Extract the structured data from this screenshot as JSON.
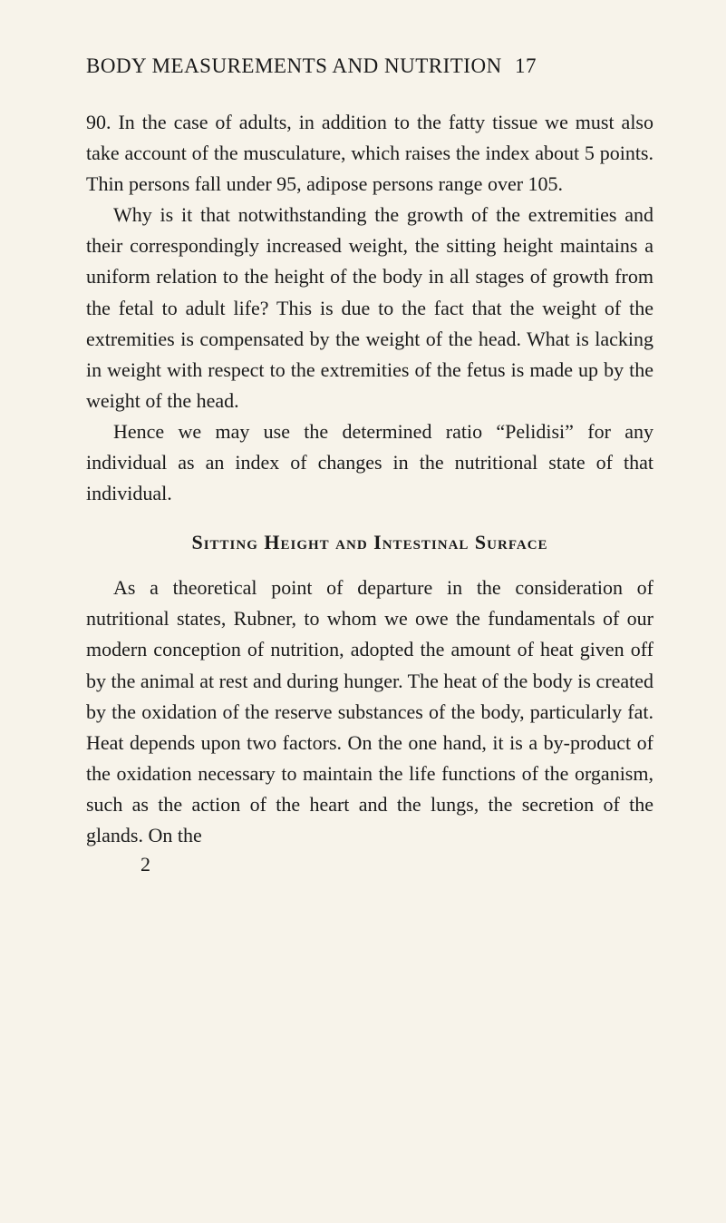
{
  "header": {
    "title": "BODY MEASUREMENTS AND NUTRITION",
    "pageNumber": "17"
  },
  "paragraphs": {
    "p1": "90.   In the case of adults, in addition to the fatty tissue we must also take account of the musculature, which raises the index about 5 points. Thin persons fall under 95, adipose persons range over 105.",
    "p2": "Why is it that notwithstanding the growth of the extremities and their correspondingly increased weight, the sitting height maintains a uniform relation to the height of the body in all stages of growth from the fetal to adult life? This is due to the fact that the weight of the extremities is compensated by the weight of the head. What is lacking in weight with respect to the extremities of the fetus is made up by the weight of the head.",
    "p3": "Hence we may use the determined ratio “Pelidisi” for any individual as an index of changes in the nutritional state of that individual.",
    "sectionHeading": "Sitting Height and Intestinal Surface",
    "p4": "As a theoretical point of departure in the considera­tion of nutritional states, Rubner, to whom we owe the fundamentals of our modern conception of nutri­tion, adopted the amount of heat given off by the animal at rest and during hunger. The heat of the body is created by the oxidation of the reserve sub­stances of the body, particularly fat. Heat depends upon two factors. On the one hand, it is a by-product of the oxidation necessary to maintain the life func­tions of the organism, such as the action of the heart and the lungs, the secretion of the glands. On the"
  },
  "signature": "2"
}
